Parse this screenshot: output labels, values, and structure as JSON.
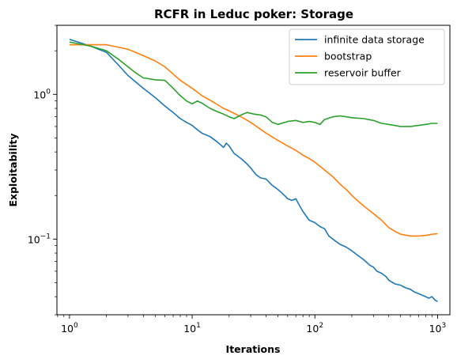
{
  "chart_data": {
    "type": "line",
    "title": "RCFR in Leduc poker: Storage",
    "xlabel": "Iterations",
    "ylabel": "Exploitability",
    "xscale": "log",
    "yscale": "log",
    "xlim": [
      0.79,
      1260
    ],
    "ylim": [
      0.03,
      3.0
    ],
    "x_ticks": [
      {
        "value": 1,
        "base": "10",
        "exp": "0"
      },
      {
        "value": 10,
        "base": "10",
        "exp": "1"
      },
      {
        "value": 100,
        "base": "10",
        "exp": "2"
      },
      {
        "value": 1000,
        "base": "10",
        "exp": "3"
      }
    ],
    "y_ticks": [
      {
        "value": 0.1,
        "base": "10",
        "exp": "−1"
      },
      {
        "value": 1,
        "base": "10",
        "exp": "0"
      }
    ],
    "grid": false,
    "legend_position": "top-right",
    "series": [
      {
        "name": "infinite data storage",
        "color": "#1f77b4",
        "points": [
          [
            1,
            2.4
          ],
          [
            1.5,
            2.15
          ],
          [
            2,
            1.95
          ],
          [
            2.5,
            1.6
          ],
          [
            3,
            1.35
          ],
          [
            4,
            1.1
          ],
          [
            5,
            0.95
          ],
          [
            6,
            0.83
          ],
          [
            7,
            0.75
          ],
          [
            8,
            0.68
          ],
          [
            9,
            0.64
          ],
          [
            10,
            0.61
          ],
          [
            11,
            0.57
          ],
          [
            12,
            0.54
          ],
          [
            14,
            0.51
          ],
          [
            16,
            0.47
          ],
          [
            18,
            0.43
          ],
          [
            19,
            0.46
          ],
          [
            20,
            0.44
          ],
          [
            22,
            0.39
          ],
          [
            25,
            0.36
          ],
          [
            28,
            0.33
          ],
          [
            30,
            0.31
          ],
          [
            33,
            0.28
          ],
          [
            36,
            0.265
          ],
          [
            40,
            0.26
          ],
          [
            45,
            0.235
          ],
          [
            50,
            0.22
          ],
          [
            55,
            0.205
          ],
          [
            60,
            0.19
          ],
          [
            65,
            0.185
          ],
          [
            70,
            0.19
          ],
          [
            75,
            0.17
          ],
          [
            80,
            0.155
          ],
          [
            90,
            0.135
          ],
          [
            100,
            0.13
          ],
          [
            110,
            0.122
          ],
          [
            120,
            0.118
          ],
          [
            130,
            0.105
          ],
          [
            140,
            0.1
          ],
          [
            160,
            0.092
          ],
          [
            180,
            0.088
          ],
          [
            200,
            0.083
          ],
          [
            220,
            0.078
          ],
          [
            250,
            0.072
          ],
          [
            280,
            0.066
          ],
          [
            300,
            0.064
          ],
          [
            320,
            0.06
          ],
          [
            350,
            0.058
          ],
          [
            380,
            0.055
          ],
          [
            400,
            0.052
          ],
          [
            450,
            0.049
          ],
          [
            500,
            0.048
          ],
          [
            550,
            0.046
          ],
          [
            600,
            0.045
          ],
          [
            650,
            0.043
          ],
          [
            700,
            0.042
          ],
          [
            750,
            0.041
          ],
          [
            800,
            0.04
          ],
          [
            850,
            0.039
          ],
          [
            900,
            0.04
          ],
          [
            950,
            0.038
          ],
          [
            1000,
            0.037
          ]
        ]
      },
      {
        "name": "bootstrap",
        "color": "#ff7f0e",
        "points": [
          [
            1,
            2.2
          ],
          [
            1.3,
            2.2
          ],
          [
            1.6,
            2.2
          ],
          [
            2,
            2.2
          ],
          [
            2.5,
            2.12
          ],
          [
            3,
            2.05
          ],
          [
            4,
            1.85
          ],
          [
            5,
            1.7
          ],
          [
            6,
            1.55
          ],
          [
            7,
            1.38
          ],
          [
            8,
            1.25
          ],
          [
            10,
            1.1
          ],
          [
            12,
            0.98
          ],
          [
            15,
            0.88
          ],
          [
            18,
            0.8
          ],
          [
            20,
            0.77
          ],
          [
            25,
            0.7
          ],
          [
            30,
            0.64
          ],
          [
            40,
            0.54
          ],
          [
            50,
            0.48
          ],
          [
            60,
            0.44
          ],
          [
            70,
            0.41
          ],
          [
            80,
            0.38
          ],
          [
            90,
            0.36
          ],
          [
            100,
            0.34
          ],
          [
            120,
            0.3
          ],
          [
            140,
            0.27
          ],
          [
            160,
            0.24
          ],
          [
            180,
            0.22
          ],
          [
            200,
            0.2
          ],
          [
            230,
            0.18
          ],
          [
            260,
            0.165
          ],
          [
            300,
            0.15
          ],
          [
            350,
            0.135
          ],
          [
            400,
            0.12
          ],
          [
            450,
            0.113
          ],
          [
            500,
            0.108
          ],
          [
            600,
            0.105
          ],
          [
            700,
            0.105
          ],
          [
            800,
            0.106
          ],
          [
            900,
            0.108
          ],
          [
            1000,
            0.109
          ]
        ]
      },
      {
        "name": "reservoir buffer",
        "color": "#2ca02c",
        "points": [
          [
            1,
            2.3
          ],
          [
            1.5,
            2.15
          ],
          [
            2,
            2.0
          ],
          [
            2.5,
            1.75
          ],
          [
            3,
            1.55
          ],
          [
            3.5,
            1.4
          ],
          [
            4,
            1.3
          ],
          [
            5,
            1.26
          ],
          [
            6,
            1.25
          ],
          [
            7,
            1.1
          ],
          [
            8,
            0.98
          ],
          [
            9,
            0.9
          ],
          [
            10,
            0.86
          ],
          [
            11,
            0.9
          ],
          [
            12,
            0.87
          ],
          [
            14,
            0.8
          ],
          [
            16,
            0.76
          ],
          [
            18,
            0.73
          ],
          [
            20,
            0.7
          ],
          [
            22,
            0.68
          ],
          [
            25,
            0.72
          ],
          [
            28,
            0.75
          ],
          [
            32,
            0.73
          ],
          [
            36,
            0.72
          ],
          [
            40,
            0.7
          ],
          [
            45,
            0.64
          ],
          [
            50,
            0.62
          ],
          [
            60,
            0.65
          ],
          [
            70,
            0.66
          ],
          [
            80,
            0.64
          ],
          [
            90,
            0.65
          ],
          [
            100,
            0.64
          ],
          [
            110,
            0.62
          ],
          [
            120,
            0.67
          ],
          [
            140,
            0.7
          ],
          [
            160,
            0.71
          ],
          [
            180,
            0.7
          ],
          [
            200,
            0.69
          ],
          [
            250,
            0.68
          ],
          [
            300,
            0.66
          ],
          [
            350,
            0.63
          ],
          [
            400,
            0.62
          ],
          [
            500,
            0.6
          ],
          [
            600,
            0.6
          ],
          [
            700,
            0.61
          ],
          [
            800,
            0.62
          ],
          [
            900,
            0.63
          ],
          [
            1000,
            0.63
          ]
        ]
      }
    ]
  }
}
